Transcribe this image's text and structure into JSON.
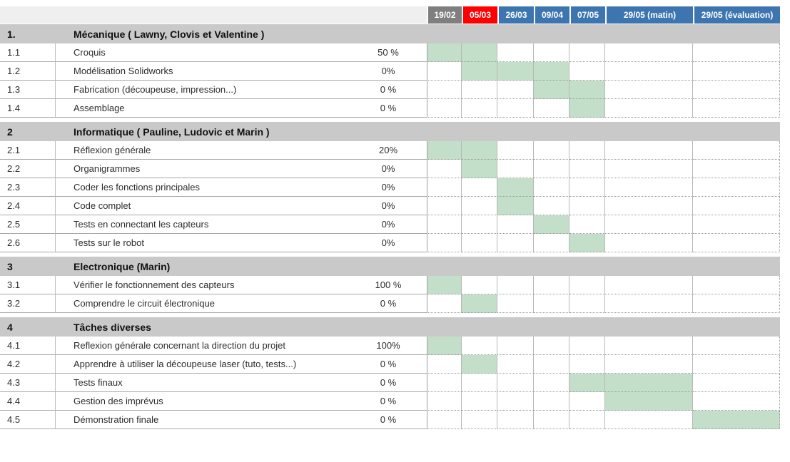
{
  "colors": {
    "gantt_fill": "#c4dfc9",
    "section_row_bg": "#c9c9c9",
    "corner_bg": "#efefef",
    "header_blue": "#3d75b1",
    "header_red": "#ff0000",
    "header_gray": "#7f7f7f"
  },
  "header": {
    "date_columns": [
      {
        "label": "19/02",
        "color_key": "header_gray"
      },
      {
        "label": "05/03",
        "color_key": "header_red"
      },
      {
        "label": "26/03",
        "color_key": "header_blue"
      },
      {
        "label": "09/04",
        "color_key": "header_blue"
      },
      {
        "label": "07/05",
        "color_key": "header_blue"
      },
      {
        "label": "29/05 (matin)",
        "color_key": "header_blue"
      },
      {
        "label": "29/05 (évaluation)",
        "color_key": "header_blue"
      }
    ]
  },
  "rows": [
    {
      "type": "section",
      "num": "1.",
      "title": "Mécanique ( Lawny, Clovis et Valentine )"
    },
    {
      "type": "task",
      "num": "1.1",
      "task": "Croquis",
      "progress": "50 %",
      "filled": [
        1,
        2
      ]
    },
    {
      "type": "task",
      "num": "1.2",
      "task": "Modélisation Solidworks",
      "progress": "0%",
      "filled": [
        2,
        3,
        4
      ]
    },
    {
      "type": "task",
      "num": "1.3",
      "task": "Fabrication (découpeuse, impression...)",
      "progress": "0 %",
      "filled": [
        4,
        5
      ]
    },
    {
      "type": "task",
      "num": "1.4",
      "task": "Assemblage",
      "progress": "0 %",
      "filled": [
        5
      ]
    },
    {
      "type": "section",
      "num": "2",
      "title": "Informatique ( Pauline, Ludovic et Marin )"
    },
    {
      "type": "task",
      "num": "2.1",
      "task": "Réflexion générale",
      "progress": "20%",
      "filled": [
        1,
        2
      ]
    },
    {
      "type": "task",
      "num": "2.2",
      "task": "Organigrammes",
      "progress": "0%",
      "filled": [
        2
      ]
    },
    {
      "type": "task",
      "num": "2.3",
      "task": "Coder les fonctions principales",
      "progress": "0%",
      "filled": [
        3
      ]
    },
    {
      "type": "task",
      "num": "2.4",
      "task": "Code complet",
      "progress": "0%",
      "filled": [
        3
      ]
    },
    {
      "type": "task",
      "num": "2.5",
      "task": "Tests en connectant les capteurs",
      "progress": "0%",
      "filled": [
        4
      ]
    },
    {
      "type": "task",
      "num": "2.6",
      "task": "Tests sur le robot",
      "progress": "0%",
      "filled": [
        5
      ]
    },
    {
      "type": "section",
      "num": "3",
      "title": "Electronique (Marin)"
    },
    {
      "type": "task",
      "num": "3.1",
      "task": "Vérifier le fonctionnement des capteurs",
      "progress": "100 %",
      "filled": [
        1
      ]
    },
    {
      "type": "task",
      "num": "3.2",
      "task": "Comprendre le circuit électronique",
      "progress": "0 %",
      "filled": [
        2
      ]
    },
    {
      "type": "section",
      "num": "4",
      "title": "Tâches diverses"
    },
    {
      "type": "task",
      "num": "4.1",
      "task": "Reflexion générale concernant la direction du projet",
      "progress": "100%",
      "filled": [
        1
      ]
    },
    {
      "type": "task",
      "num": "4.2",
      "task": "Apprendre à utiliser la découpeuse laser (tuto, tests...)",
      "progress": "0 %",
      "filled": [
        2
      ]
    },
    {
      "type": "task",
      "num": "4.3",
      "task": "Tests finaux",
      "progress": "0 %",
      "filled": [
        5,
        6
      ]
    },
    {
      "type": "task",
      "num": "4.4",
      "task": "Gestion des imprévus",
      "progress": "0 %",
      "filled": [
        6
      ]
    },
    {
      "type": "task",
      "num": "4.5",
      "task": "Démonstration finale",
      "progress": "0 %",
      "filled": [
        7
      ]
    }
  ]
}
